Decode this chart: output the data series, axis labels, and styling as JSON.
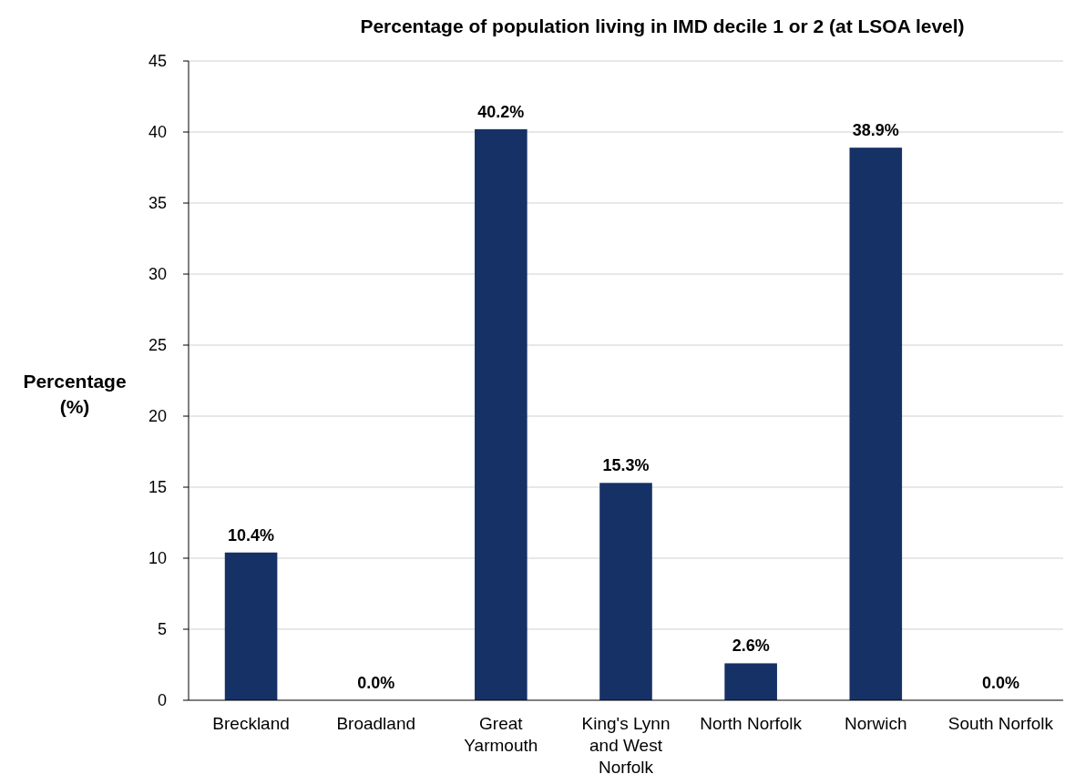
{
  "chart_data": {
    "type": "bar",
    "title": "Percentage of population living in IMD decile 1 or 2 (at LSOA level)",
    "ylabel": "Percentage (%)",
    "categories": [
      "Breckland",
      "Broadland",
      "Great Yarmouth",
      "King's Lynn and West Norfolk",
      "North Norfolk",
      "Norwich",
      "South Norfolk"
    ],
    "values": [
      10.4,
      0.0,
      40.2,
      15.3,
      2.6,
      38.9,
      0.0
    ],
    "value_labels": [
      "10.4%",
      "0.0%",
      "40.2%",
      "15.3%",
      "2.6%",
      "38.9%",
      "0.0%"
    ],
    "color": "#163166",
    "ylim": [
      0,
      45
    ],
    "yticks": [
      0,
      5,
      10,
      15,
      20,
      25,
      30,
      35,
      40,
      45
    ],
    "grid": "y"
  }
}
